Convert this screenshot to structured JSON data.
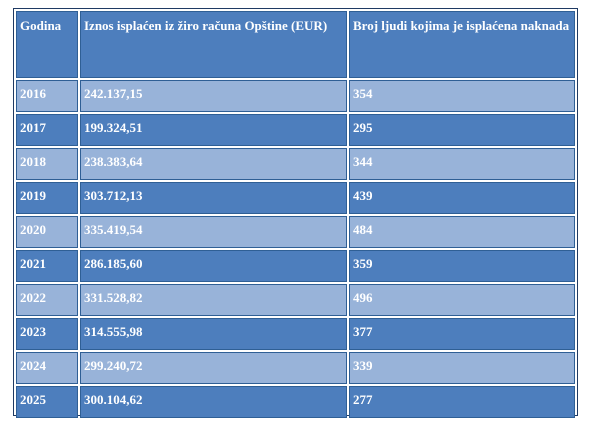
{
  "table": {
    "headers": [
      "Godina",
      "Iznos isplaćen iz žiro računa Opštine (EUR)",
      "Broj ljudi kojima je isplaćena naknada"
    ],
    "rows": [
      [
        "2016",
        "242.137,15",
        "354"
      ],
      [
        "2017",
        "199.324,51",
        "295"
      ],
      [
        "2018",
        "238.383,64",
        "344"
      ],
      [
        "2019",
        "303.712,13",
        "439"
      ],
      [
        "2020",
        "335.419,54",
        "484"
      ],
      [
        "2021",
        "286.185,60",
        "359"
      ],
      [
        "2022",
        "331.528,82",
        "496"
      ],
      [
        "2023",
        "314.555,98",
        "377"
      ],
      [
        "2024",
        "299.240,72",
        "339"
      ],
      [
        "2025",
        "300.104,62",
        "277"
      ]
    ]
  },
  "colors": {
    "dark_row": "#4d7ebd",
    "light_row": "#98b3d9",
    "text": "#ffffff"
  }
}
